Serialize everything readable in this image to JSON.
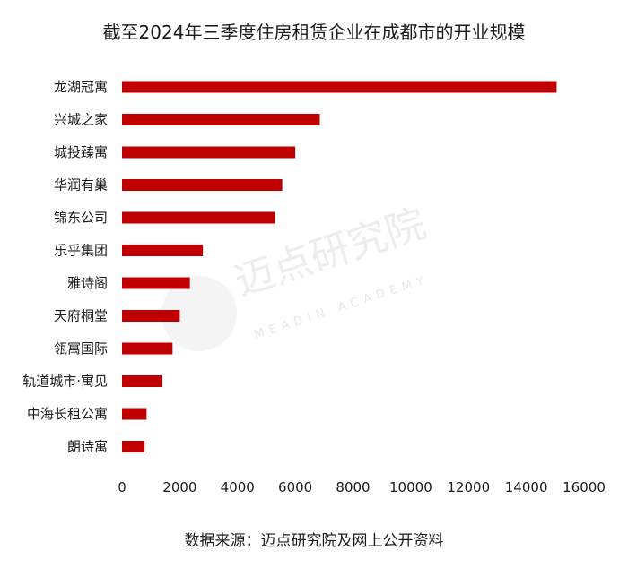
{
  "chart_data": {
    "type": "bar",
    "orientation": "horizontal",
    "title": "截至2024年三季度住房租赁企业在成都市的开业规模",
    "source": "数据来源：迈点研究院及网上公开资料",
    "categories": [
      "龙湖冠寓",
      "兴城之家",
      "城投臻寓",
      "华润有巢",
      "锦东公司",
      "乐乎集团",
      "雅诗阁",
      "天府桐堂",
      "瓴寓国际",
      "轨道城市·寓见",
      "中海长租公寓",
      "朗诗寓"
    ],
    "values": [
      15050,
      6850,
      6000,
      5550,
      5300,
      2800,
      2350,
      2000,
      1750,
      1400,
      850,
      780
    ],
    "xlim": [
      0,
      16000
    ],
    "xticks": [
      0,
      2000,
      4000,
      6000,
      8000,
      10000,
      12000,
      14000,
      16000
    ],
    "bar_color": "#c00000",
    "grid": false,
    "legend": "none"
  },
  "watermark": {
    "text": "迈点研究院",
    "subtext": "MEADIN ACADEMY"
  }
}
